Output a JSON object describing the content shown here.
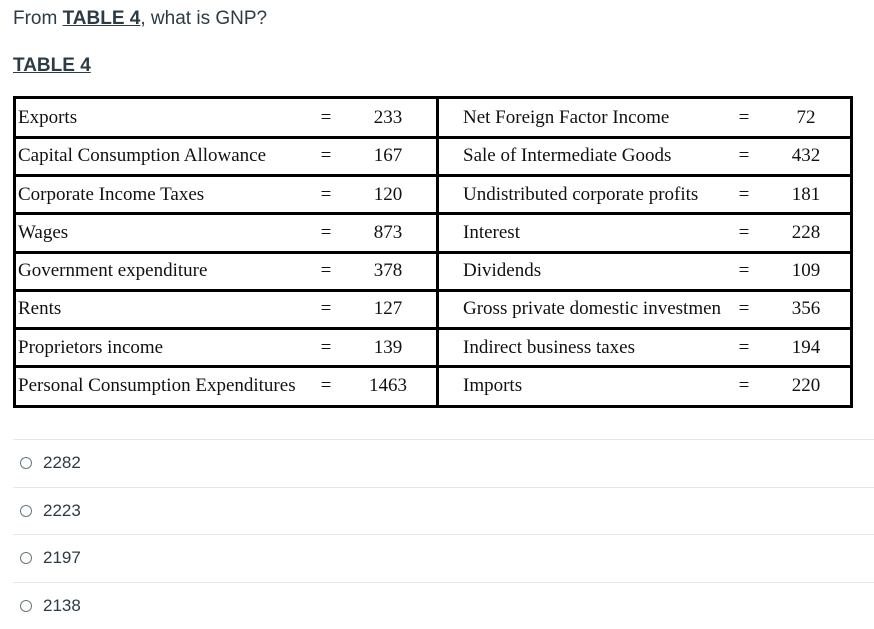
{
  "question": {
    "prefix": "From ",
    "table_ref": "TABLE 4",
    "suffix": ", what is GNP?"
  },
  "table_title": "TABLE 4",
  "table": {
    "rows": [
      {
        "left_label": "Exports",
        "left_eq": "=",
        "left_value": "233",
        "right_label": "Net Foreign Factor Income",
        "right_eq": "=",
        "right_value": "72"
      },
      {
        "left_label": "Capital Consumption Allowance",
        "left_eq": "=",
        "left_value": "167",
        "right_label": "Sale of Intermediate Goods",
        "right_eq": "=",
        "right_value": "432"
      },
      {
        "left_label": "Corporate Income Taxes",
        "left_eq": "=",
        "left_value": "120",
        "right_label": "Undistributed corporate profits",
        "right_eq": "=",
        "right_value": "181"
      },
      {
        "left_label": "Wages",
        "left_eq": "=",
        "left_value": "873",
        "right_label": "Interest",
        "right_eq": "=",
        "right_value": "228"
      },
      {
        "left_label": "Government expenditure",
        "left_eq": "=",
        "left_value": "378",
        "right_label": "Dividends",
        "right_eq": "=",
        "right_value": "109"
      },
      {
        "left_label": "Rents",
        "left_eq": "=",
        "left_value": "127",
        "right_label": "Gross private domestic investmen",
        "right_eq": "=",
        "right_value": "356"
      },
      {
        "left_label": "Proprietors income",
        "left_eq": "=",
        "left_value": "139",
        "right_label": "Indirect business taxes",
        "right_eq": "=",
        "right_value": "194"
      },
      {
        "left_label": "Personal Consumption Expenditures",
        "left_eq": "=",
        "left_value": "1463",
        "right_label": "Imports",
        "right_eq": "=",
        "right_value": "220"
      }
    ]
  },
  "answers": [
    {
      "label": "2282"
    },
    {
      "label": "2223"
    },
    {
      "label": "2197"
    },
    {
      "label": "2138"
    }
  ]
}
